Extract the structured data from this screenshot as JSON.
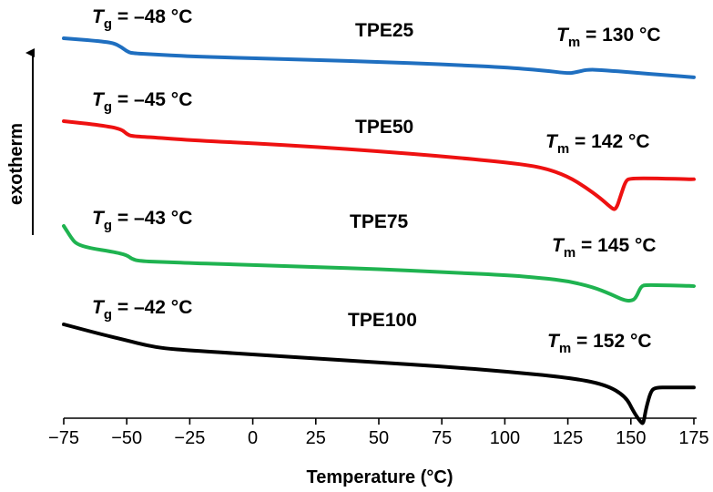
{
  "chart_data": {
    "type": "line",
    "title": "",
    "xlabel": "Temperature (°C)",
    "ylabel": "exotherm",
    "xlim": [
      -75,
      175
    ],
    "xticks": [
      "−75",
      "−50",
      "−25",
      "0",
      "25",
      "50",
      "75",
      "100",
      "125",
      "150",
      "175"
    ],
    "series": [
      {
        "name": "TPE25",
        "color": "#1f6fc0",
        "tg_value": "–48 °C",
        "tm_value": "130 °C",
        "x": [
          -75,
          -60,
          -55,
          -52,
          -50,
          -48,
          -40,
          -25,
          0,
          25,
          50,
          75,
          100,
          115,
          125,
          128,
          133,
          140,
          150,
          165,
          175
        ],
        "y": [
          0.0,
          -0.15,
          -0.25,
          -0.45,
          -0.65,
          -0.75,
          -0.8,
          -0.9,
          -1.0,
          -1.08,
          -1.18,
          -1.3,
          -1.45,
          -1.6,
          -1.75,
          -1.7,
          -1.55,
          -1.6,
          -1.7,
          -1.85,
          -1.95
        ]
      },
      {
        "name": "TPE50",
        "color": "#ee1111",
        "tg_value": "–45 °C",
        "tm_value": "142 °C",
        "x": [
          -75,
          -60,
          -52,
          -50,
          -48,
          -40,
          -25,
          0,
          25,
          50,
          75,
          100,
          115,
          125,
          132,
          138,
          142,
          144,
          146,
          148,
          150,
          160,
          175
        ],
        "y": [
          0.0,
          -0.2,
          -0.4,
          -0.65,
          -0.75,
          -0.8,
          -0.95,
          -1.1,
          -1.28,
          -1.5,
          -1.75,
          -2.05,
          -2.3,
          -2.75,
          -3.3,
          -3.85,
          -4.3,
          -4.45,
          -3.7,
          -2.95,
          -2.85,
          -2.85,
          -2.9
        ]
      },
      {
        "name": "TPE75",
        "color": "#1fb350",
        "tg_value": "–43 °C",
        "tm_value": "145 °C",
        "x": [
          -75,
          -72,
          -70,
          -65,
          -55,
          -50,
          -48,
          -45,
          -35,
          -25,
          0,
          25,
          50,
          75,
          100,
          115,
          125,
          135,
          142,
          147,
          150,
          152,
          154,
          156,
          160,
          175
        ],
        "y": [
          0.0,
          -0.6,
          -0.9,
          -1.1,
          -1.3,
          -1.45,
          -1.65,
          -1.75,
          -1.8,
          -1.85,
          -1.95,
          -2.05,
          -2.15,
          -2.3,
          -2.45,
          -2.6,
          -2.75,
          -3.05,
          -3.4,
          -3.7,
          -3.75,
          -3.6,
          -3.0,
          -2.95,
          -2.95,
          -3.0
        ]
      },
      {
        "name": "TPE100",
        "color": "#000000",
        "tg_value": "–42 °C",
        "tm_value": "152 °C",
        "x": [
          -75,
          -60,
          -50,
          -42,
          -35,
          -25,
          0,
          25,
          50,
          75,
          100,
          125,
          140,
          148,
          151,
          154,
          155,
          156,
          158,
          160,
          165,
          175
        ],
        "y": [
          0.0,
          -0.5,
          -0.8,
          -1.05,
          -1.2,
          -1.3,
          -1.5,
          -1.7,
          -1.9,
          -2.1,
          -2.35,
          -2.65,
          -3.0,
          -3.6,
          -4.35,
          -4.9,
          -4.95,
          -4.2,
          -3.3,
          -3.15,
          -3.15,
          -3.15
        ]
      }
    ]
  },
  "exotherm_label": "exotherm",
  "tg_sym": "T",
  "tg_sub": "g",
  "tm_sym": "T",
  "tm_sub": "m"
}
